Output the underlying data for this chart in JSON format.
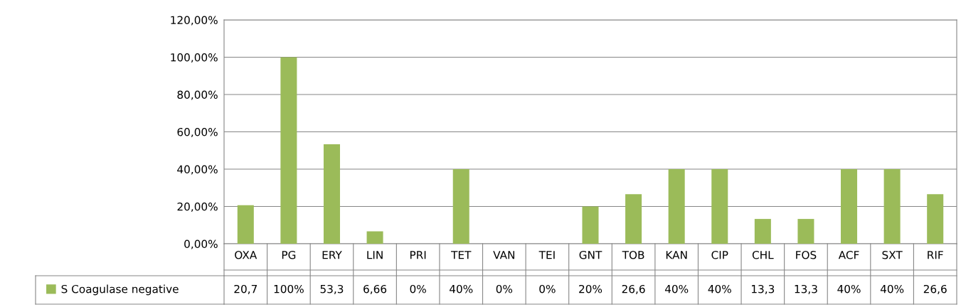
{
  "chart_data": {
    "type": "bar",
    "categories": [
      "OXA",
      "PG",
      "ERY",
      "LIN",
      "PRI",
      "TET",
      "VAN",
      "TEI",
      "GNT",
      "TOB",
      "KAN",
      "CIP",
      "CHL",
      "FOS",
      "ACF",
      "SXT",
      "RIF"
    ],
    "series": [
      {
        "name": "S Coagulase negative",
        "color": "#9bbb59",
        "values": [
          20.7,
          100,
          53.3,
          6.66,
          0,
          40,
          0,
          0,
          20,
          26.6,
          40,
          40,
          13.3,
          13.3,
          40,
          40,
          26.6
        ],
        "value_labels": [
          "20,7",
          "100%",
          "53,3",
          "6,66",
          "0%",
          "40%",
          "0%",
          "0%",
          "20%",
          "26,6",
          "40%",
          "40%",
          "13,3",
          "13,3",
          "40%",
          "40%",
          "26,6"
        ]
      }
    ],
    "ylim": [
      0,
      120
    ],
    "yticks": [
      {
        "value": 0,
        "label": "0,00%"
      },
      {
        "value": 20,
        "label": "20,00%"
      },
      {
        "value": 40,
        "label": "40,00%"
      },
      {
        "value": 60,
        "label": "60,00%"
      },
      {
        "value": 80,
        "label": "80,00%"
      },
      {
        "value": 100,
        "label": "100,00%"
      },
      {
        "value": 120,
        "label": "120,00%"
      }
    ],
    "grid": "y",
    "legend": "bottom"
  }
}
